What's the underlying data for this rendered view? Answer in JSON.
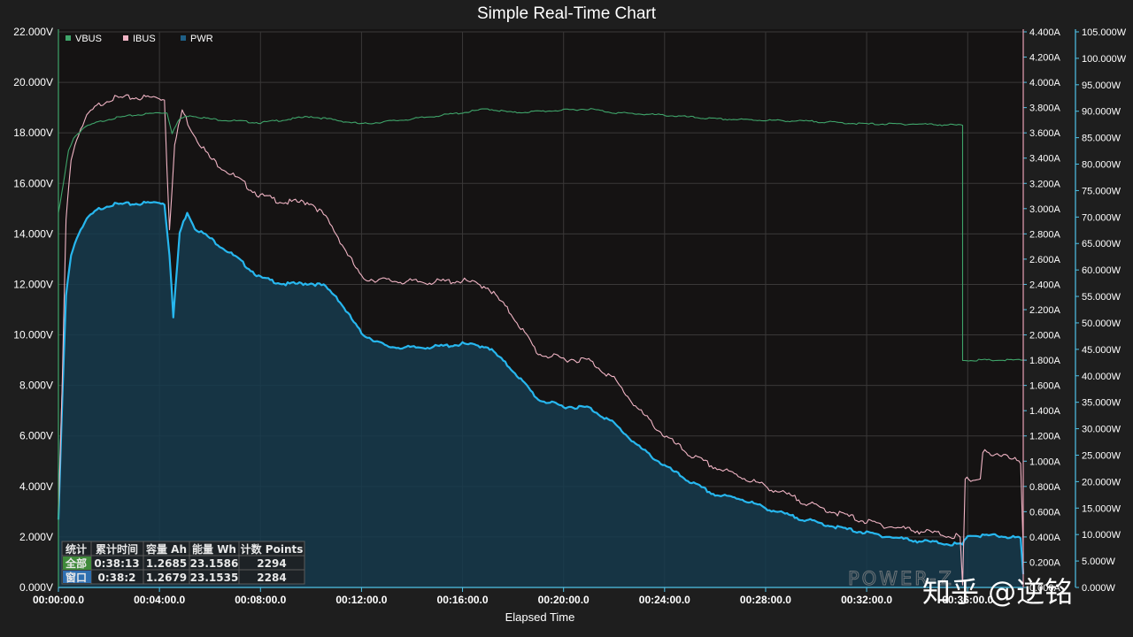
{
  "chart_data": {
    "type": "line",
    "title": "Simple Real-Time Chart",
    "xlabel": "Elapsed Time",
    "x_ticks": [
      "00:00:00.0",
      "00:04:00.0",
      "00:08:00.0",
      "00:12:00.0",
      "00:16:00.0",
      "00:20:00.0",
      "00:24:00.0",
      "00:28:00.0",
      "00:32:00.0",
      "00:36:00.0"
    ],
    "x_unit": "minutes",
    "xlim": [
      0,
      38.2
    ],
    "axes": {
      "left": {
        "unit": "V",
        "ylim": [
          0,
          22
        ],
        "ticks": [
          "0.000V",
          "2.000V",
          "4.000V",
          "6.000V",
          "8.000V",
          "10.000V",
          "12.000V",
          "14.000V",
          "16.000V",
          "18.000V",
          "20.000V",
          "22.000V"
        ]
      },
      "right1": {
        "unit": "A",
        "ylim": [
          0,
          4.4
        ],
        "ticks": [
          "0.000A",
          "0.200A",
          "0.400A",
          "0.600A",
          "0.800A",
          "1.000A",
          "1.200A",
          "1.400A",
          "1.600A",
          "1.800A",
          "2.000A",
          "2.200A",
          "2.400A",
          "2.600A",
          "2.800A",
          "3.000A",
          "3.200A",
          "3.400A",
          "3.600A",
          "3.800A",
          "4.000A",
          "4.200A",
          "4.400A"
        ]
      },
      "right2": {
        "unit": "W",
        "ylim": [
          0,
          105
        ],
        "ticks": [
          "0.000W",
          "5.000W",
          "10.000W",
          "15.000W",
          "20.000W",
          "25.000W",
          "30.000W",
          "35.000W",
          "40.000W",
          "45.000W",
          "50.000W",
          "55.000W",
          "60.000W",
          "65.000W",
          "70.000W",
          "75.000W",
          "80.000W",
          "85.000W",
          "90.000W",
          "95.000W",
          "100.000W",
          "105.000W"
        ]
      }
    },
    "legend": {
      "position": "top-left"
    },
    "grid": true,
    "series": [
      {
        "name": "VBUS",
        "axis": "left",
        "color": "#3fa46a",
        "points": [
          [
            0,
            14.8
          ],
          [
            0.2,
            16
          ],
          [
            0.4,
            17.3
          ],
          [
            0.6,
            17.8
          ],
          [
            1,
            18.2
          ],
          [
            1.5,
            18.4
          ],
          [
            2,
            18.55
          ],
          [
            3,
            18.7
          ],
          [
            4,
            18.8
          ],
          [
            4.3,
            18.8
          ],
          [
            4.5,
            18.0
          ],
          [
            4.8,
            18.55
          ],
          [
            5.2,
            18.7
          ],
          [
            6,
            18.55
          ],
          [
            8,
            18.4
          ],
          [
            10,
            18.65
          ],
          [
            12,
            18.35
          ],
          [
            14,
            18.55
          ],
          [
            16,
            18.8
          ],
          [
            17,
            18.95
          ],
          [
            18,
            18.8
          ],
          [
            20,
            18.9
          ],
          [
            21,
            18.95
          ],
          [
            22,
            18.8
          ],
          [
            24,
            18.7
          ],
          [
            26,
            18.55
          ],
          [
            28,
            18.5
          ],
          [
            30,
            18.45
          ],
          [
            32,
            18.35
          ],
          [
            34,
            18.35
          ],
          [
            35.8,
            18.3
          ],
          [
            35.8,
            9.0
          ],
          [
            38.2,
            9.0
          ]
        ]
      },
      {
        "name": "IBUS",
        "axis": "right1",
        "color": "#f0b4c4",
        "points": [
          [
            0,
            0.55
          ],
          [
            0.15,
            1.6
          ],
          [
            0.3,
            2.9
          ],
          [
            0.5,
            3.4
          ],
          [
            0.8,
            3.6
          ],
          [
            1.2,
            3.75
          ],
          [
            1.6,
            3.82
          ],
          [
            2,
            3.87
          ],
          [
            3,
            3.88
          ],
          [
            4,
            3.88
          ],
          [
            4.2,
            3.86
          ],
          [
            4.3,
            3.3
          ],
          [
            4.4,
            2.85
          ],
          [
            4.6,
            3.5
          ],
          [
            4.9,
            3.78
          ],
          [
            5.2,
            3.65
          ],
          [
            5.5,
            3.55
          ],
          [
            6,
            3.4
          ],
          [
            7,
            3.25
          ],
          [
            8,
            3.1
          ],
          [
            9,
            3.05
          ],
          [
            10,
            3.05
          ],
          [
            10.5,
            2.95
          ],
          [
            11,
            2.8
          ],
          [
            12,
            2.45
          ],
          [
            13,
            2.43
          ],
          [
            14,
            2.42
          ],
          [
            15,
            2.42
          ],
          [
            16,
            2.43
          ],
          [
            17,
            2.38
          ],
          [
            18,
            2.15
          ],
          [
            19,
            1.85
          ],
          [
            20,
            1.81
          ],
          [
            21,
            1.8
          ],
          [
            22,
            1.65
          ],
          [
            23,
            1.4
          ],
          [
            24,
            1.2
          ],
          [
            25,
            1.05
          ],
          [
            26,
            0.95
          ],
          [
            27,
            0.88
          ],
          [
            28,
            0.8
          ],
          [
            29,
            0.72
          ],
          [
            30,
            0.64
          ],
          [
            31,
            0.58
          ],
          [
            32,
            0.52
          ],
          [
            33,
            0.48
          ],
          [
            34,
            0.45
          ],
          [
            35,
            0.42
          ],
          [
            35.7,
            0.4
          ],
          [
            35.8,
            0.02
          ],
          [
            35.9,
            0.85
          ],
          [
            36.5,
            0.86
          ],
          [
            36.6,
            1.08
          ],
          [
            37,
            1.03
          ],
          [
            37.5,
            1.06
          ],
          [
            38.1,
            0.98
          ],
          [
            38.2,
            0.3
          ]
        ]
      },
      {
        "name": "PWR",
        "axis": "right2",
        "color": "#27b7ef",
        "fill": "#163b4e",
        "points": [
          [
            0,
            12.5
          ],
          [
            0.15,
            35
          ],
          [
            0.3,
            55
          ],
          [
            0.5,
            63
          ],
          [
            0.8,
            67
          ],
          [
            1.2,
            70
          ],
          [
            1.6,
            71.5
          ],
          [
            2,
            72.3
          ],
          [
            3,
            72.5
          ],
          [
            4,
            72.8
          ],
          [
            4.2,
            72.5
          ],
          [
            4.4,
            63
          ],
          [
            4.55,
            51
          ],
          [
            4.8,
            67
          ],
          [
            5.1,
            71
          ],
          [
            5.4,
            68
          ],
          [
            6,
            66
          ],
          [
            7,
            62.5
          ],
          [
            8,
            58.5
          ],
          [
            9,
            57.3
          ],
          [
            10,
            57.5
          ],
          [
            10.5,
            57
          ],
          [
            11,
            55
          ],
          [
            12,
            48
          ],
          [
            13,
            45.5
          ],
          [
            14,
            45.3
          ],
          [
            15,
            45.5
          ],
          [
            16,
            46
          ],
          [
            17,
            45.5
          ],
          [
            18,
            41
          ],
          [
            19,
            35.5
          ],
          [
            20,
            34.2
          ],
          [
            21,
            34
          ],
          [
            22,
            31
          ],
          [
            23,
            26.5
          ],
          [
            24,
            23
          ],
          [
            25,
            20
          ],
          [
            26,
            17.5
          ],
          [
            27,
            16.8
          ],
          [
            28,
            15
          ],
          [
            29,
            13.5
          ],
          [
            30,
            12.3
          ],
          [
            31,
            11.2
          ],
          [
            32,
            10.3
          ],
          [
            33,
            9.5
          ],
          [
            34,
            8.8
          ],
          [
            35,
            8.4
          ],
          [
            35.8,
            8.0
          ],
          [
            36,
            9.9
          ],
          [
            36.5,
            9.7
          ],
          [
            37,
            9.8
          ],
          [
            37.5,
            9.6
          ],
          [
            38.1,
            9.3
          ],
          [
            38.2,
            2.5
          ]
        ]
      }
    ]
  },
  "stats_table": {
    "headers": [
      "统计",
      "累计时间",
      "容量 Ah",
      "能量 Wh",
      "计数 Points"
    ],
    "rows": [
      {
        "label": "全部",
        "time": "0:38:13",
        "capacity": "1.2685",
        "energy": "23.1586",
        "count": "2294"
      },
      {
        "label": "窗口",
        "time": "0:38:2",
        "capacity": "1.2679",
        "energy": "23.1535",
        "count": "2284"
      }
    ]
  },
  "watermarks": {
    "logo": "POWER-Z",
    "credit": "知乎 @逆铭"
  },
  "colors": {
    "background": "#1e1e1e",
    "plot_background": "#151313",
    "grid": "#3a3838",
    "axis_line": "#4fc3e8"
  }
}
